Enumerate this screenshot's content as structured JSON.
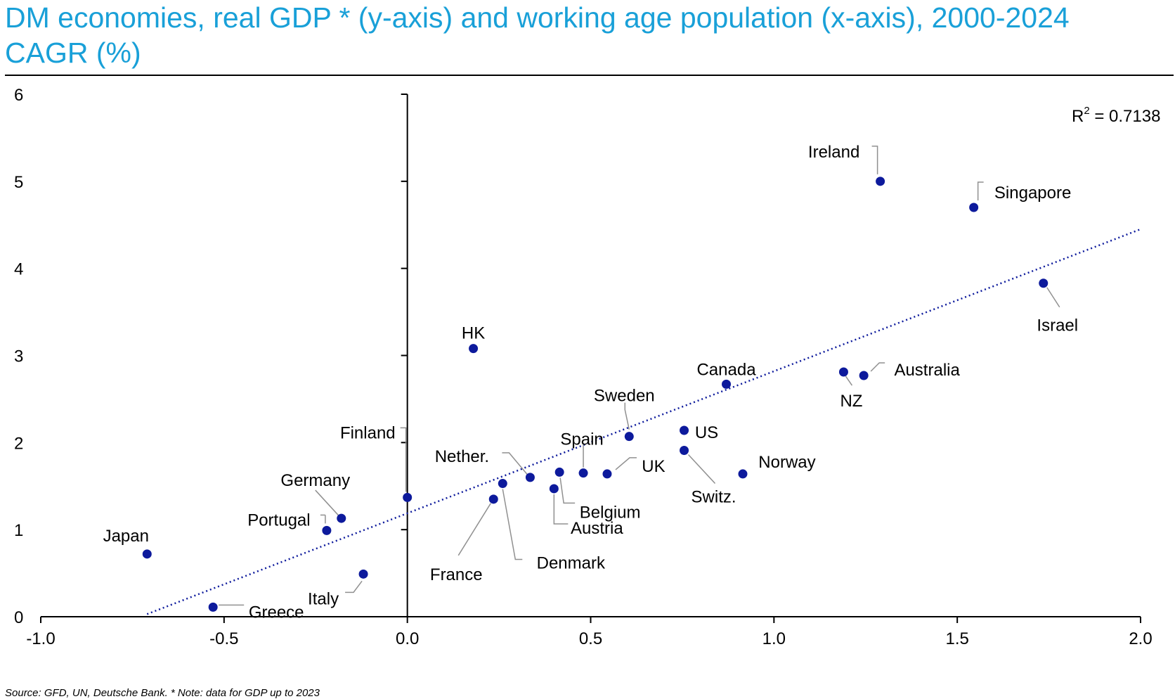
{
  "title": "DM economies, real GDP * (y-axis) and working age population (x-axis), 2000-2024 CAGR (%)",
  "source": "Source: GFD, UN, Deutsche Bank. * Note: data for GDP up to 2023",
  "r2_label": "R",
  "r2_sup": "2",
  "r2_value": " = 0.7138",
  "colors": {
    "title": "#19a0d8",
    "points": "#0d1a9c",
    "trend": "#0d1a9c"
  },
  "chart_data": {
    "type": "scatter",
    "title": "DM economies, real GDP * (y-axis) and working age population (x-axis), 2000-2024 CAGR (%)",
    "xlabel": "",
    "ylabel": "",
    "xlim": [
      -1.0,
      2.0
    ],
    "ylim": [
      0,
      6
    ],
    "xticks": [
      "-1.0",
      "-0.5",
      "0.0",
      "0.5",
      "1.0",
      "1.5",
      "2.0"
    ],
    "yticks": [
      "0",
      "1",
      "2",
      "3",
      "4",
      "5",
      "6"
    ],
    "trendline": {
      "x0": -0.71,
      "y0": 0.03,
      "x1": 2.0,
      "y1": 4.45,
      "r2": 0.7138
    },
    "points": [
      {
        "label": "Japan",
        "x": -0.71,
        "y": 0.72
      },
      {
        "label": "Greece",
        "x": -0.53,
        "y": 0.11
      },
      {
        "label": "Portugal",
        "x": -0.22,
        "y": 0.99
      },
      {
        "label": "Germany",
        "x": -0.18,
        "y": 1.13
      },
      {
        "label": "Italy",
        "x": -0.12,
        "y": 0.49
      },
      {
        "label": "Finland",
        "x": 0.0,
        "y": 1.37
      },
      {
        "label": "HK",
        "x": 0.18,
        "y": 3.08
      },
      {
        "label": "France",
        "x": 0.235,
        "y": 1.35
      },
      {
        "label": "Denmark",
        "x": 0.26,
        "y": 1.53
      },
      {
        "label": "Nether.",
        "x": 0.335,
        "y": 1.6
      },
      {
        "label": "Austria",
        "x": 0.4,
        "y": 1.47
      },
      {
        "label": "Belgium",
        "x": 0.415,
        "y": 1.66
      },
      {
        "label": "Spain",
        "x": 0.48,
        "y": 1.65
      },
      {
        "label": "UK",
        "x": 0.545,
        "y": 1.64
      },
      {
        "label": "Sweden",
        "x": 0.605,
        "y": 2.07
      },
      {
        "label": "Switz.",
        "x": 0.755,
        "y": 1.91
      },
      {
        "label": "US",
        "x": 0.755,
        "y": 2.14
      },
      {
        "label": "Canada",
        "x": 0.87,
        "y": 2.67
      },
      {
        "label": "Norway",
        "x": 0.915,
        "y": 1.64
      },
      {
        "label": "NZ",
        "x": 1.19,
        "y": 2.81
      },
      {
        "label": "Australia",
        "x": 1.245,
        "y": 2.77
      },
      {
        "label": "Ireland",
        "x": 1.29,
        "y": 5.0
      },
      {
        "label": "Singapore",
        "x": 1.545,
        "y": 4.7
      },
      {
        "label": "Israel",
        "x": 1.735,
        "y": 3.83
      }
    ]
  }
}
